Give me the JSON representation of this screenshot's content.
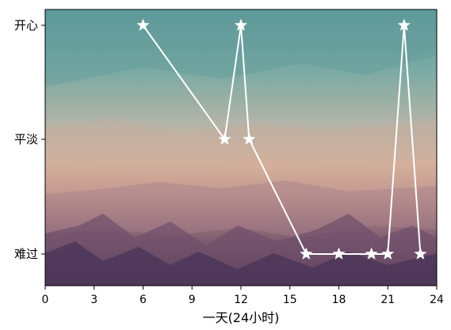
{
  "chart_data": {
    "type": "line",
    "title": "",
    "xlabel": "一天(24小时)",
    "ylabel": "",
    "xlim": [
      0,
      24
    ],
    "x_ticks": [
      0,
      3,
      6,
      9,
      12,
      15,
      18,
      21,
      24
    ],
    "y_categories": [
      "难过",
      "平淡",
      "开心"
    ],
    "grid": false,
    "legend": "none",
    "series": [
      {
        "x": [
          6,
          11,
          12,
          12.5,
          16,
          18,
          20,
          21,
          22,
          23
        ],
        "y": [
          "开心",
          "平淡",
          "开心",
          "平淡",
          "难过",
          "难过",
          "难过",
          "难过",
          "开心",
          "难过"
        ],
        "line_color": "#ffffff",
        "marker": "star"
      }
    ]
  }
}
